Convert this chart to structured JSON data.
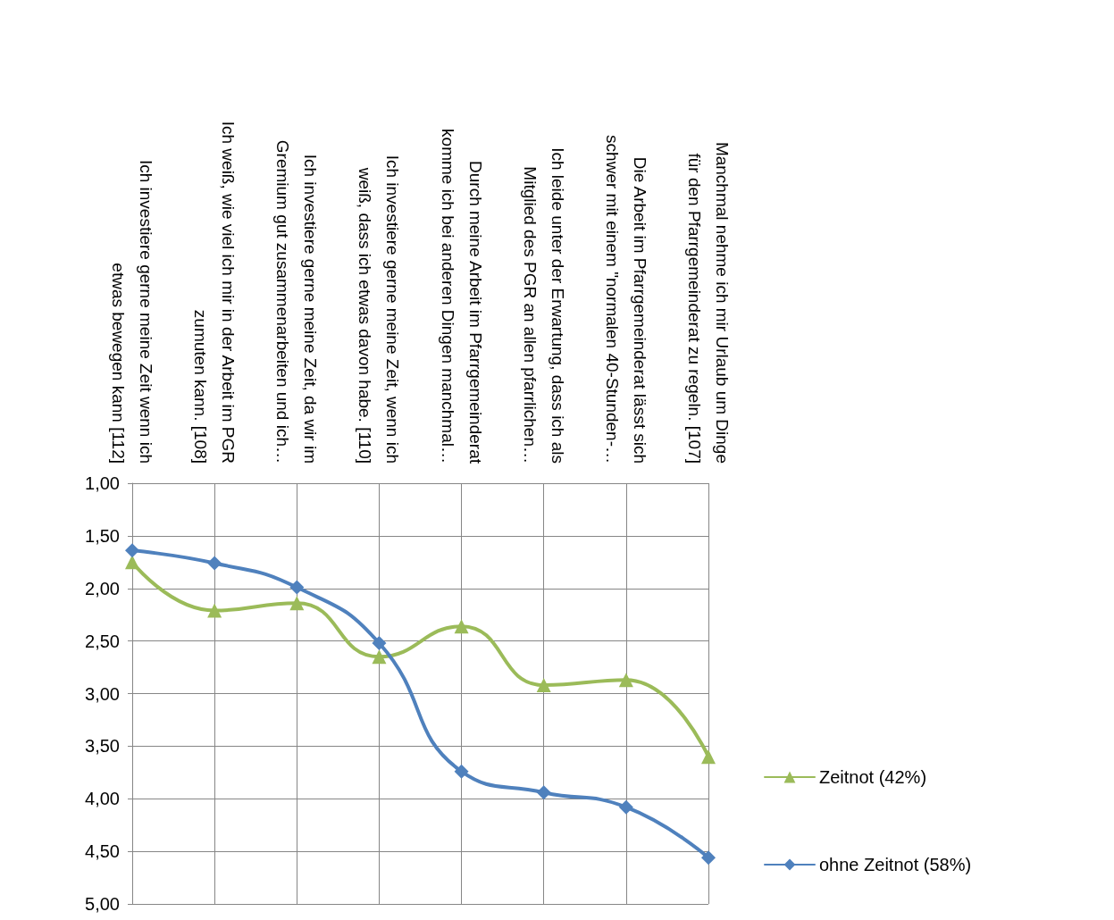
{
  "chart_data": {
    "type": "line",
    "categories": [
      "Ich investiere gerne meine Zeit wenn ich\netwas bewegen kann [112]",
      "Ich weiß, wie viel ich mir in der Arbeit im PGR\nzumuten kann. [108]",
      "Ich investiere gerne meine Zeit, da wir im\nGremium gut zusammenarbeiten und ich…",
      "Ich investiere gerne meine Zeit, wenn ich\nweiß, dass ich etwas davon habe. [110]",
      "Durch meine Arbeit im Pfarrgemeinderat\nkomme ich bei anderen Dingen manchmal…",
      "Ich leide unter der Erwartung, dass ich als\nMitglied des PGR an allen pfarrlichen…",
      "Die Arbeit im Pfarrgemeinderat lässt sich\nschwer mit einem \"normalen 40-Stunden-…",
      "Manchmal nehme ich mir Urlaub um Dinge\nfür den Pfarrgemeinderat zu regeln. [107]"
    ],
    "series": [
      {
        "name": "Zeitnot (42%)",
        "color": "#9bbb59",
        "marker": "triangle",
        "values": [
          1.75,
          2.21,
          2.14,
          2.65,
          2.36,
          2.92,
          2.87,
          3.6
        ]
      },
      {
        "name": "ohne Zeitnot (58%)",
        "color": "#4f81bd",
        "marker": "diamond",
        "values": [
          1.64,
          1.76,
          1.99,
          2.52,
          3.74,
          3.94,
          4.08,
          4.56
        ]
      }
    ],
    "ylim": [
      5,
      1
    ],
    "yticks": [
      {
        "value": 1,
        "label": "1,00"
      },
      {
        "value": 1.5,
        "label": "1,50"
      },
      {
        "value": 2,
        "label": "2,00"
      },
      {
        "value": 2.5,
        "label": "2,50"
      },
      {
        "value": 3,
        "label": "3,00"
      },
      {
        "value": 3.5,
        "label": "3,50"
      },
      {
        "value": 4,
        "label": "4,00"
      },
      {
        "value": 4.5,
        "label": "4,50"
      },
      {
        "value": 5,
        "label": "5,00"
      }
    ],
    "grid": true,
    "legend": "right",
    "line_style": "solid"
  }
}
